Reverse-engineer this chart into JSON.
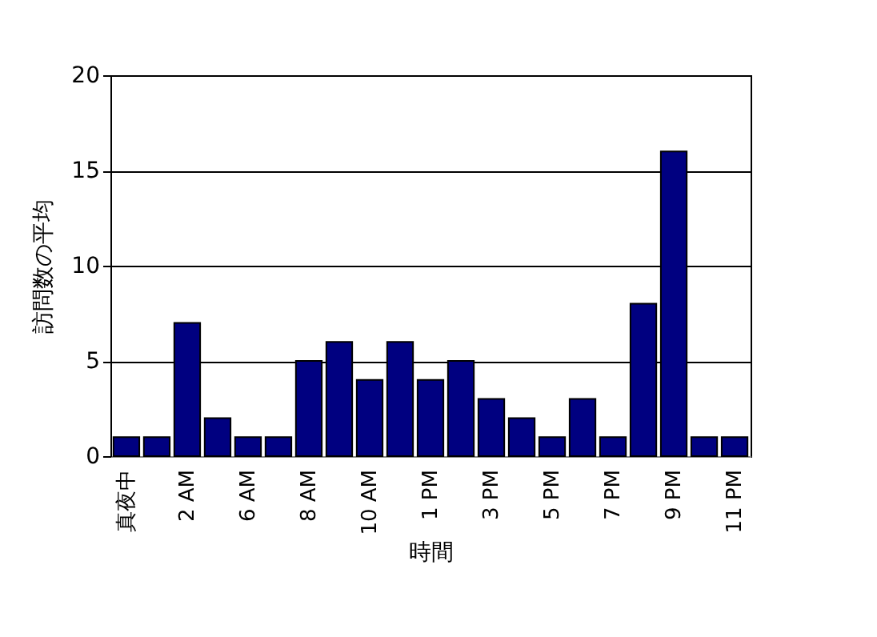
{
  "chart_data": {
    "type": "bar",
    "xlabel": "時間",
    "ylabel": "訪問数の平均",
    "categories": [
      "真夜中",
      null,
      "2 AM",
      null,
      "6 AM",
      null,
      "8 AM",
      null,
      "10 AM",
      null,
      "1 PM",
      null,
      "3 PM",
      null,
      "5 PM",
      null,
      "7 PM",
      null,
      "9 PM",
      null,
      "11 PM"
    ],
    "values": [
      1,
      1,
      7,
      2,
      1,
      1,
      5,
      6,
      4,
      6,
      4,
      5,
      3,
      2,
      1,
      3,
      1,
      8,
      16,
      1,
      1
    ],
    "color": "#000080",
    "ylim": [
      0,
      20
    ],
    "yticks": [
      0,
      5,
      10,
      15,
      20
    ],
    "grid": "y"
  }
}
